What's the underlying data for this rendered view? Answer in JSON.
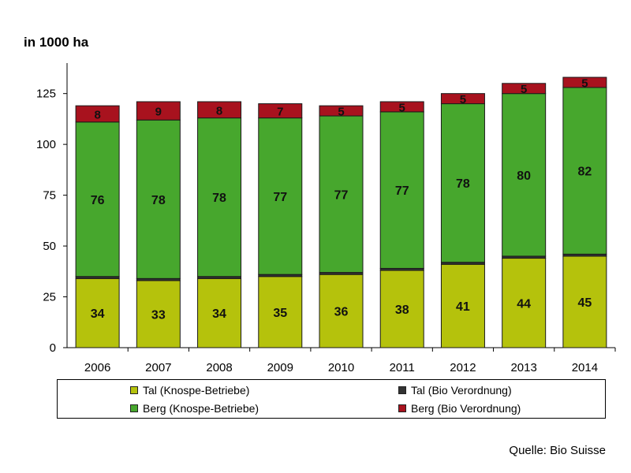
{
  "chart_data": {
    "type": "bar",
    "stacked": true,
    "unit_label": "in 1000 ha",
    "source": "Quelle: Bio Suisse",
    "categories": [
      "2006",
      "2007",
      "2008",
      "2009",
      "2010",
      "2011",
      "2012",
      "2013",
      "2014"
    ],
    "ylim": [
      0,
      140
    ],
    "yticks": [
      0,
      25,
      50,
      75,
      100,
      125
    ],
    "grid": false,
    "legend_placement": "bottom",
    "series": [
      {
        "name": "Tal (Knospe-Betriebe)",
        "color": "#b5c20c",
        "values": [
          34,
          33,
          34,
          35,
          36,
          38,
          41,
          44,
          45
        ],
        "labels": [
          "34",
          "33",
          "34",
          "35",
          "36",
          "38",
          "41",
          "44",
          "45"
        ]
      },
      {
        "name": "Tal (Bio Verordnung)",
        "color": "#333333",
        "values": [
          1,
          1,
          1,
          1,
          1,
          1,
          1,
          1,
          1
        ],
        "labels": [
          "1",
          "1",
          "1",
          "1",
          "1",
          "1",
          "1",
          "1",
          "1"
        ]
      },
      {
        "name": "Berg (Knospe-Betriebe)",
        "color": "#47a72d",
        "values": [
          76,
          78,
          78,
          77,
          77,
          77,
          78,
          80,
          82
        ],
        "labels": [
          "76",
          "78",
          "78",
          "77",
          "77",
          "77",
          "78",
          "80",
          "82"
        ]
      },
      {
        "name": "Berg (Bio Verordnung)",
        "color": "#a8121e",
        "values": [
          8,
          9,
          8,
          7,
          5,
          5,
          5,
          5,
          5
        ],
        "labels": [
          "8",
          "9",
          "8",
          "7",
          "5",
          "5",
          "5",
          "5",
          "5"
        ]
      }
    ]
  }
}
